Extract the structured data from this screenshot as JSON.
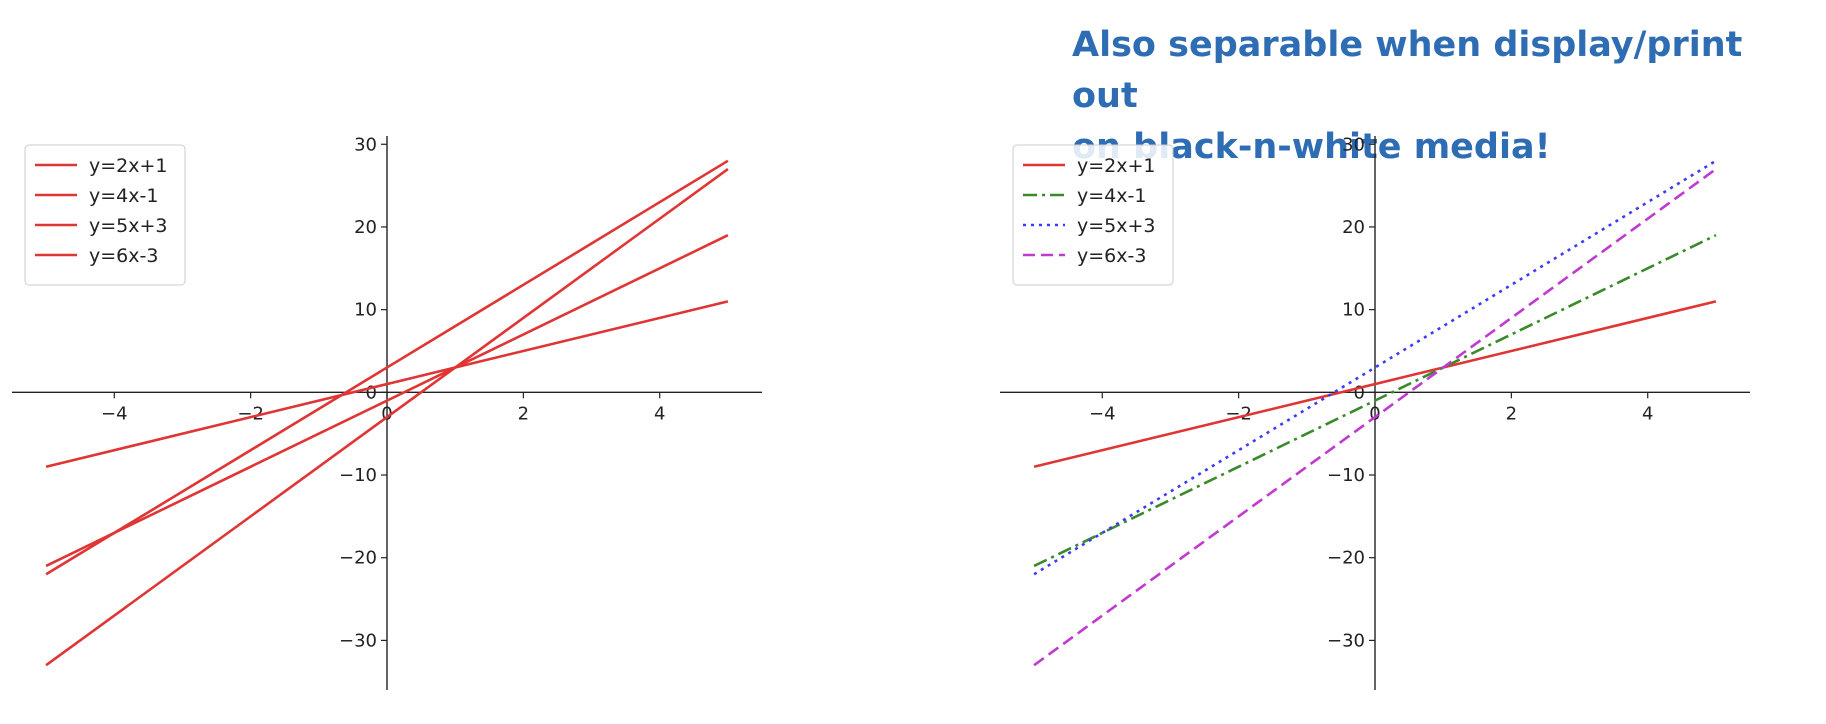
{
  "headline": {
    "line1": "Also separable when display/print out",
    "line2": "on black-n-white media!"
  },
  "chart_data": [
    {
      "type": "line",
      "title": "",
      "xlabel": "",
      "ylabel": "",
      "xlim": [
        -5.5,
        5.5
      ],
      "ylim": [
        -36,
        31
      ],
      "x_ticks": [
        -4,
        -2,
        0,
        2,
        4
      ],
      "y_ticks": [
        -30,
        -20,
        -10,
        0,
        10,
        20,
        30
      ],
      "x_tick_labels": [
        "−4",
        "−2",
        "0",
        "2",
        "4"
      ],
      "y_tick_labels": [
        "−30",
        "−20",
        "−10",
        "0",
        "10",
        "20",
        "30"
      ],
      "spines": "centered",
      "grid": false,
      "legend": "top-left",
      "x_range": [
        -5,
        5
      ],
      "series": [
        {
          "name": "y=2x+1",
          "slope": 2,
          "intercept": 1,
          "color": "#e03535",
          "dash": "solid",
          "values": [
            -9,
            11
          ]
        },
        {
          "name": "y=4x-1",
          "slope": 4,
          "intercept": -1,
          "color": "#e03535",
          "dash": "solid",
          "values": [
            -21,
            19
          ]
        },
        {
          "name": "y=5x+3",
          "slope": 5,
          "intercept": 3,
          "color": "#e03535",
          "dash": "solid",
          "values": [
            -22,
            28
          ]
        },
        {
          "name": "y=6x-3",
          "slope": 6,
          "intercept": -3,
          "color": "#e03535",
          "dash": "solid",
          "values": [
            -33,
            27
          ]
        }
      ]
    },
    {
      "type": "line",
      "title": "",
      "xlabel": "",
      "ylabel": "",
      "xlim": [
        -5.5,
        5.5
      ],
      "ylim": [
        -36,
        31
      ],
      "x_ticks": [
        -4,
        -2,
        0,
        2,
        4
      ],
      "y_ticks": [
        -30,
        -20,
        -10,
        0,
        10,
        20,
        30
      ],
      "x_tick_labels": [
        "−4",
        "−2",
        "0",
        "2",
        "4"
      ],
      "y_tick_labels": [
        "−30",
        "−20",
        "−10",
        "0",
        "10",
        "20",
        "30"
      ],
      "spines": "centered",
      "grid": false,
      "legend": "top-left",
      "x_range": [
        -5,
        5
      ],
      "series": [
        {
          "name": "y=2x+1",
          "slope": 2,
          "intercept": 1,
          "color": "#e03535",
          "dash": "solid",
          "values": [
            -9,
            11
          ]
        },
        {
          "name": "y=4x-1",
          "slope": 4,
          "intercept": -1,
          "color": "#3a8a2a",
          "dash": "dashdot",
          "values": [
            -21,
            19
          ]
        },
        {
          "name": "y=5x+3",
          "slope": 5,
          "intercept": 3,
          "color": "#3b3bff",
          "dash": "dotted",
          "values": [
            -22,
            28
          ]
        },
        {
          "name": "y=6x-3",
          "slope": 6,
          "intercept": -3,
          "color": "#c03ad0",
          "dash": "dashed",
          "values": [
            -33,
            27
          ]
        }
      ]
    }
  ]
}
